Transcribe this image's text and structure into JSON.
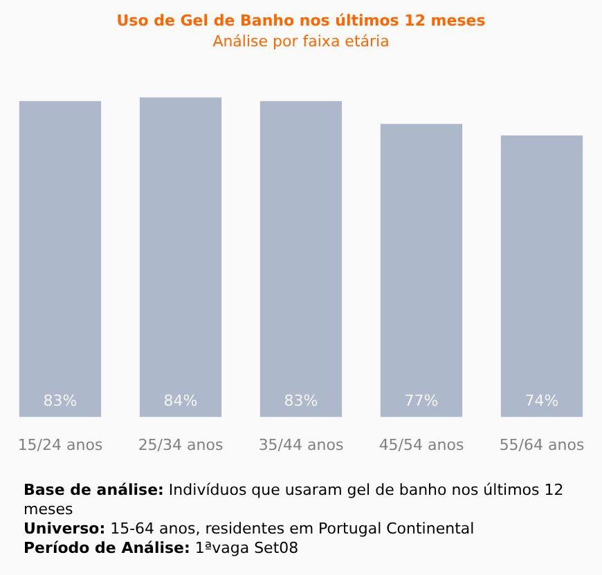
{
  "chart_data": {
    "type": "bar",
    "title": "Uso de Gel de Banho nos últimos 12 meses",
    "subtitle": "Análise por faixa etária",
    "categories": [
      "15/24 anos",
      "25/34 anos",
      "35/44 anos",
      "45/54 anos",
      "55/64 anos"
    ],
    "values": [
      83,
      84,
      83,
      77,
      74
    ],
    "color": "#adb9ca",
    "value_labels": [
      "83%",
      "84%",
      "83%",
      "77%",
      "74%"
    ],
    "annotations": [
      "Base de análise: Indivíduos que usaram gel de banho nos últimos 12 meses",
      "Universo: 15-64 anos, residentes em Portugal Continental",
      "Período de Análise: 1ªvaga Set08"
    ]
  }
}
